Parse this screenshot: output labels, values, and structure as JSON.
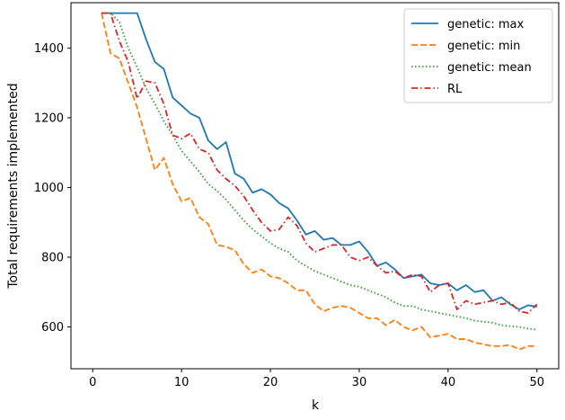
{
  "chart_data": {
    "type": "line",
    "title": "",
    "xlabel": "k",
    "ylabel": "Total requirements implemented",
    "xlim": [
      -2.45,
      52.45
    ],
    "ylim": [
      480,
      1530
    ],
    "xticks": [
      0,
      10,
      20,
      30,
      40,
      50
    ],
    "yticks": [
      600,
      800,
      1000,
      1200,
      1400
    ],
    "grid": false,
    "legend_position": "top-right",
    "x": [
      1,
      2,
      3,
      4,
      5,
      6,
      7,
      8,
      9,
      10,
      11,
      12,
      13,
      14,
      15,
      16,
      17,
      18,
      19,
      20,
      21,
      22,
      23,
      24,
      25,
      26,
      27,
      28,
      29,
      30,
      31,
      32,
      33,
      34,
      35,
      36,
      37,
      38,
      39,
      40,
      41,
      42,
      43,
      44,
      45,
      46,
      47,
      48,
      49,
      50
    ],
    "series": [
      {
        "name": "genetic: max",
        "color": "#1f77b4",
        "dash": "solid",
        "values": [
          1500,
          1500,
          1500,
          1500,
          1500,
          1425,
          1360,
          1340,
          1258,
          1235,
          1212,
          1200,
          1135,
          1110,
          1130,
          1040,
          1025,
          985,
          995,
          980,
          955,
          940,
          905,
          865,
          875,
          850,
          855,
          835,
          835,
          845,
          815,
          775,
          785,
          765,
          740,
          745,
          750,
          725,
          720,
          725,
          705,
          720,
          700,
          705,
          675,
          685,
          665,
          650,
          662,
          658
        ]
      },
      {
        "name": "genetic: min",
        "color": "#ff7f0e",
        "dash": "dashed",
        "values": [
          1500,
          1385,
          1370,
          1300,
          1230,
          1140,
          1050,
          1085,
          1010,
          960,
          970,
          915,
          895,
          835,
          830,
          820,
          780,
          755,
          765,
          745,
          740,
          725,
          705,
          705,
          665,
          645,
          655,
          660,
          655,
          640,
          625,
          625,
          605,
          620,
          600,
          590,
          600,
          570,
          575,
          580,
          565,
          565,
          555,
          550,
          545,
          545,
          548,
          535,
          545,
          545
        ]
      },
      {
        "name": "genetic: mean",
        "color": "#2ca02c",
        "dash": "dotted",
        "values": [
          1500,
          1500,
          1475,
          1400,
          1345,
          1285,
          1240,
          1190,
          1150,
          1105,
          1075,
          1045,
          1010,
          990,
          965,
          935,
          905,
          880,
          860,
          840,
          825,
          815,
          790,
          775,
          760,
          750,
          740,
          730,
          720,
          715,
          705,
          695,
          685,
          670,
          660,
          660,
          650,
          645,
          640,
          635,
          630,
          625,
          618,
          615,
          612,
          605,
          602,
          600,
          595,
          592
        ]
      },
      {
        "name": "RL",
        "color": "#d62728",
        "dash": "dashdot",
        "values": [
          1500,
          1500,
          1420,
          1360,
          1255,
          1305,
          1300,
          1240,
          1150,
          1140,
          1155,
          1110,
          1100,
          1050,
          1025,
          1005,
          975,
          935,
          900,
          875,
          880,
          915,
          890,
          840,
          815,
          825,
          835,
          835,
          800,
          790,
          800,
          775,
          755,
          760,
          740,
          750,
          745,
          700,
          720,
          725,
          650,
          675,
          665,
          670,
          675,
          665,
          670,
          645,
          640,
          665
        ]
      }
    ]
  }
}
